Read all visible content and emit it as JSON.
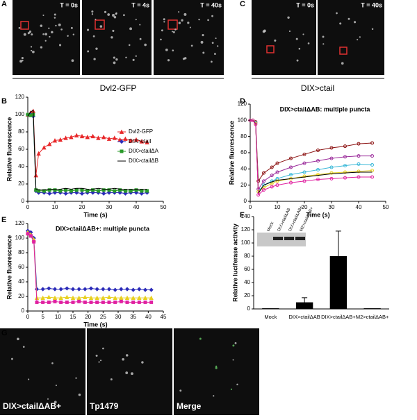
{
  "panels": {
    "letters": [
      "A",
      "B",
      "C",
      "D",
      "E",
      "F",
      "G"
    ],
    "a_times": [
      "T = 0s",
      "T = 4s",
      "T = 40s"
    ],
    "a_caption": "Dvl2-GFP",
    "c_times": [
      "T = 0s",
      "T = 40s"
    ],
    "c_caption": "DIX>ctail",
    "f_blot_lanes": [
      "Mock",
      "DIX>ctailΔAB",
      "DIX>ctailΔAB+",
      "M2>ctailΔAB+"
    ],
    "g_labels": [
      "DIX>ctailΔAB+",
      "Tp1479",
      "Merge"
    ]
  },
  "chart_data": [
    {
      "type": "line",
      "xlabel": "Time (s)",
      "ylabel": "Relative fluorescence",
      "x": [
        0,
        1,
        2,
        3,
        4,
        6,
        8,
        10,
        12,
        14,
        16,
        18,
        20,
        22,
        24,
        26,
        28,
        30,
        32,
        34,
        36,
        38,
        40,
        42,
        44
      ],
      "series": [
        {
          "name": "Dvl2-GFP",
          "color": "#e8282a",
          "marker": "triangle",
          "values": [
            100,
            102,
            104,
            30,
            55,
            62,
            66,
            70,
            71,
            73,
            74,
            76,
            75,
            74,
            75,
            73,
            74,
            72,
            73,
            71,
            72,
            70,
            71,
            69,
            68
          ]
        },
        {
          "name": "DIX>ctail",
          "color": "#2b2bb8",
          "marker": "diamond",
          "values": [
            100,
            100,
            98,
            12,
            10,
            10,
            9,
            10,
            10,
            9,
            10,
            10,
            9,
            10,
            10,
            10,
            9,
            10,
            10,
            10,
            9,
            10,
            10,
            9,
            10
          ]
        },
        {
          "name": "DIX>ctailΔA",
          "color": "#2a9a2a",
          "marker": "square",
          "values": [
            100,
            99,
            100,
            13,
            12,
            12,
            13,
            13,
            12,
            13,
            12,
            13,
            13,
            12,
            13,
            12,
            13,
            13,
            12,
            13,
            12,
            12,
            13,
            12,
            12
          ]
        },
        {
          "name": "DIX>ctailΔB",
          "color": "#000000",
          "marker": "none",
          "values": [
            98,
            103,
            105,
            14,
            13,
            13,
            14,
            14,
            14,
            15,
            14,
            15,
            15,
            14,
            14,
            15,
            14,
            14,
            15,
            14,
            14,
            14,
            14,
            14,
            14
          ]
        }
      ],
      "xlim": [
        0,
        50
      ],
      "xticks": [
        0,
        10,
        20,
        30,
        40,
        50
      ],
      "ylim": [
        0,
        120
      ],
      "yticks": [
        0,
        20,
        40,
        60,
        80,
        100,
        120
      ],
      "legend": "right"
    },
    {
      "type": "line",
      "title": "DIX>ctailΔAB: multiple puncta",
      "xlabel": "Time (s)",
      "ylabel": "Relative fluorescence",
      "x": [
        0,
        1,
        2,
        3,
        5,
        8,
        10,
        15,
        20,
        25,
        30,
        35,
        40,
        45
      ],
      "series": [
        {
          "color": "#8b1010",
          "marker": "circle",
          "values": [
            100,
            100,
            98,
            25,
            35,
            42,
            47,
            53,
            58,
            63,
            66,
            68,
            71,
            72
          ]
        },
        {
          "color": "#9a2a9a",
          "marker": "circle",
          "values": [
            100,
            100,
            97,
            15,
            25,
            32,
            36,
            42,
            47,
            50,
            53,
            55,
            56,
            56
          ]
        },
        {
          "color": "#3ab8d8",
          "marker": "circle",
          "values": [
            100,
            100,
            97,
            12,
            20,
            25,
            28,
            33,
            36,
            39,
            42,
            44,
            46,
            45
          ]
        },
        {
          "color": "#e8d020",
          "marker": "circle",
          "values": [
            100,
            100,
            96,
            12,
            17,
            22,
            25,
            28,
            31,
            33,
            35,
            36,
            37,
            38
          ]
        },
        {
          "color": "#000000",
          "marker": "none",
          "values": [
            100,
            100,
            96,
            10,
            20,
            24,
            26,
            28,
            30,
            32,
            34,
            35,
            36,
            36
          ]
        },
        {
          "color": "#e020a0",
          "marker": "circle",
          "values": [
            100,
            100,
            95,
            8,
            14,
            18,
            20,
            23,
            25,
            27,
            28,
            29,
            30,
            30
          ]
        }
      ],
      "xlim": [
        0,
        50
      ],
      "xticks": [
        0,
        10,
        20,
        30,
        40,
        50
      ],
      "ylim": [
        0,
        120
      ],
      "yticks": [
        0,
        20,
        40,
        60,
        80,
        100,
        120
      ]
    },
    {
      "type": "line",
      "title": "DIX>ctailΔAB+: multiple puncta",
      "xlabel": "Time (s)",
      "ylabel": "Relative fluorescence",
      "x": [
        0,
        1,
        2,
        3,
        5,
        7,
        9,
        11,
        13,
        15,
        17,
        19,
        21,
        23,
        25,
        27,
        29,
        31,
        33,
        35,
        37,
        39,
        41
      ],
      "series": [
        {
          "color": "#2b2bb8",
          "marker": "diamond",
          "values": [
            110,
            108,
            100,
            30,
            30,
            31,
            30,
            30,
            31,
            30,
            30,
            30,
            31,
            30,
            30,
            30,
            29,
            30,
            30,
            29,
            30,
            29,
            29
          ]
        },
        {
          "color": "#e8d020",
          "marker": "triangle",
          "values": [
            108,
            105,
            98,
            18,
            18,
            19,
            18,
            18,
            19,
            18,
            18,
            19,
            18,
            18,
            18,
            19,
            18,
            18,
            18,
            18,
            18,
            18,
            18
          ]
        },
        {
          "color": "#e020a0",
          "marker": "square",
          "values": [
            106,
            103,
            95,
            12,
            12,
            12,
            13,
            12,
            12,
            12,
            13,
            12,
            12,
            12,
            12,
            12,
            12,
            13,
            12,
            12,
            12,
            12,
            12
          ]
        }
      ],
      "xlim": [
        0,
        45
      ],
      "xticks": [
        0,
        5,
        10,
        15,
        20,
        25,
        30,
        35,
        40,
        45
      ],
      "ylim": [
        0,
        120
      ],
      "yticks": [
        0,
        20,
        40,
        60,
        80,
        100,
        120
      ]
    },
    {
      "type": "bar",
      "ylabel": "Relative luciferase activity",
      "categories": [
        "Mock",
        "DIX>ctailΔAB",
        "DIX>ctailΔAB+",
        "M2>ctailΔAB+"
      ],
      "values": [
        1,
        10,
        80,
        1
      ],
      "errors": [
        0,
        7,
        38,
        0
      ],
      "color": "#000000",
      "ylim": [
        0,
        140
      ],
      "yticks": [
        0,
        20,
        40,
        60,
        80,
        100,
        120,
        140
      ]
    }
  ]
}
